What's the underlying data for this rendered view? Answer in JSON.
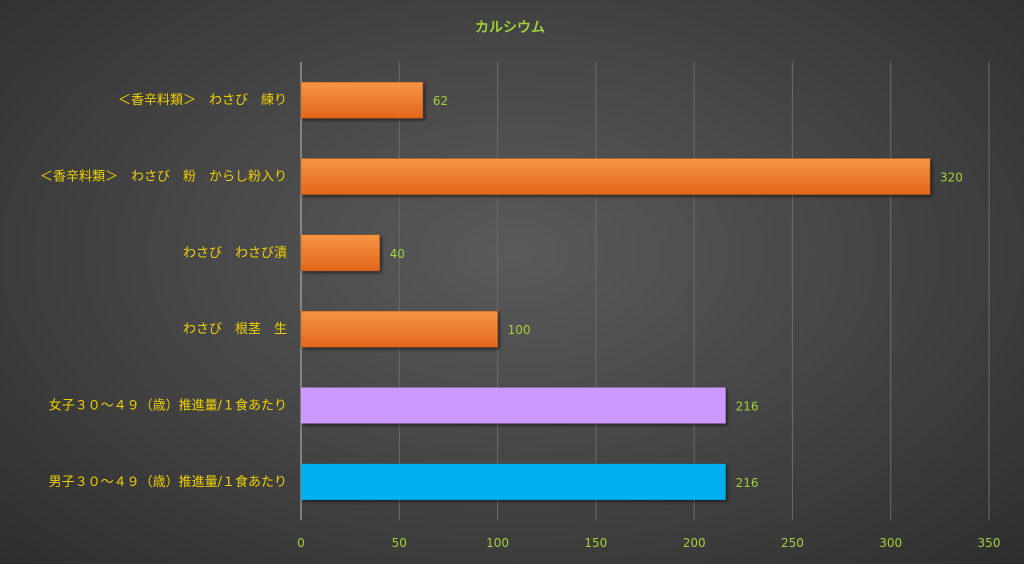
{
  "chart_data": {
    "type": "bar",
    "orientation": "horizontal",
    "title": "カルシウム",
    "categories": [
      "＜香辛料類＞　わさび　練り",
      "＜香辛料類＞　わさび　粉　からし粉入り",
      "わさび　わさび漬",
      "わさび　根茎　生",
      "女子３０～４９（歳）推進量/１食あたり",
      "男子３０～４９（歳）推進量/１食あたり"
    ],
    "values": [
      62,
      320,
      40,
      100,
      216,
      216
    ],
    "bar_colors": [
      "#f07b2a",
      "#f07b2a",
      "#f07b2a",
      "#f07b2a",
      "#cc99ff",
      "#00b0f0"
    ],
    "xlim": [
      0,
      350
    ],
    "xticks": [
      0,
      50,
      100,
      150,
      200,
      250,
      300,
      350
    ],
    "grid": true,
    "data_labels": true
  }
}
